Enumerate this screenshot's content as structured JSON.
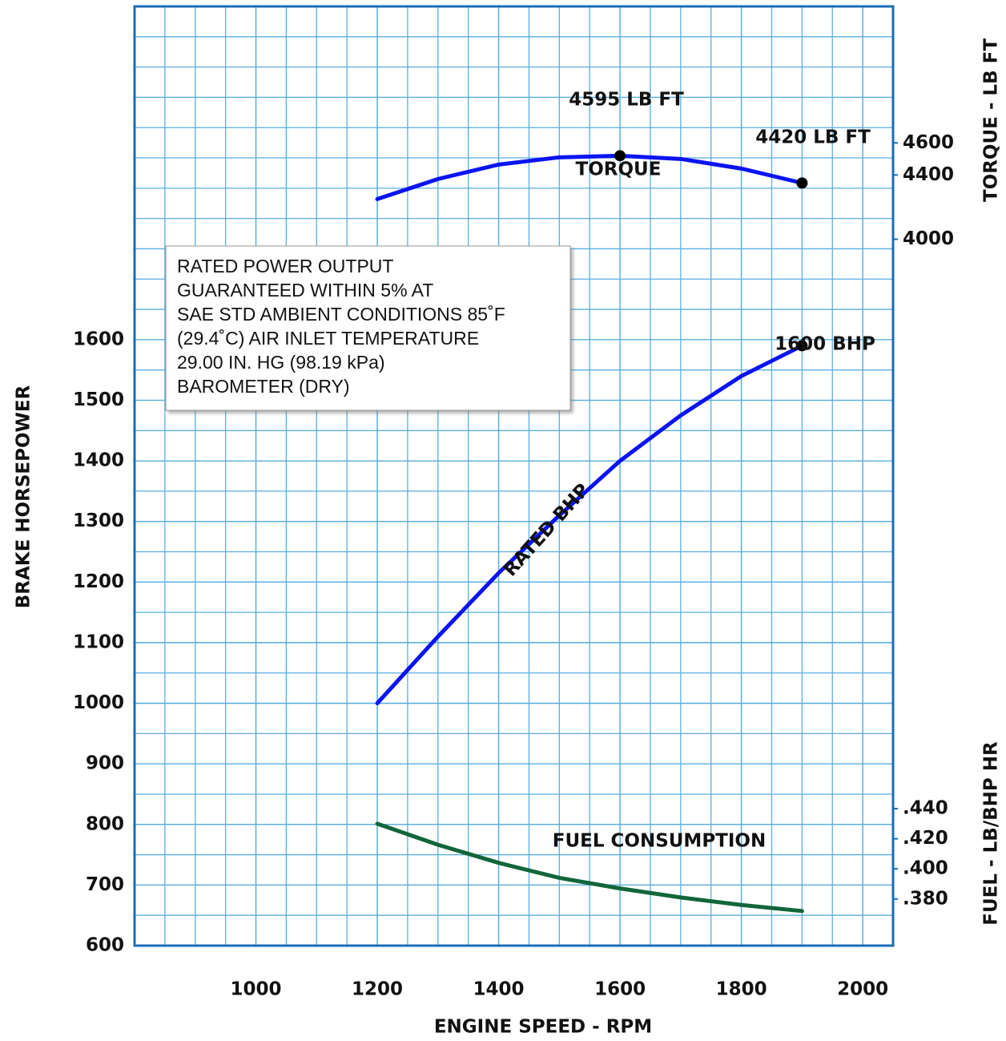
{
  "chart_data": {
    "type": "line",
    "x_label": "ENGINE SPEED - RPM",
    "y_label": "BRAKE HORSEPOWER",
    "y2_label": "TORQUE - LB FT",
    "y3_label": "FUEL - LB/BHP HR",
    "x": [
      1200,
      1300,
      1400,
      1500,
      1600,
      1700,
      1800,
      1900
    ],
    "xlim": [
      800,
      2050
    ],
    "xticks": [
      1000,
      1200,
      1400,
      1600,
      1800,
      2000
    ],
    "ylim": [
      600,
      2150
    ],
    "yticks": [
      600,
      700,
      800,
      900,
      1000,
      1100,
      1200,
      1300,
      1400,
      1500,
      1600
    ],
    "y2lim": [
      -400,
      5450
    ],
    "y2ticks": [
      4000,
      4400,
      4600
    ],
    "y3lim": [
      0.349,
      0.973
    ],
    "y3ticks": [
      {
        "value": 0.38,
        "label": ".380"
      },
      {
        "value": 0.4,
        "label": ".400"
      },
      {
        "value": 0.42,
        "label": ".420"
      },
      {
        "value": 0.44,
        "label": ".440"
      }
    ],
    "grid": true,
    "series": [
      {
        "name": "TORQUE",
        "color": "#0a14f0",
        "axis": "y2",
        "values": [
          4250,
          4375,
          4465,
          4510,
          4520,
          4500,
          4440,
          4350
        ]
      },
      {
        "name": "RATED BHP",
        "color": "#0a14f0",
        "axis": "y",
        "values": [
          1000,
          1110,
          1215,
          1310,
          1400,
          1475,
          1540,
          1590
        ]
      },
      {
        "name": "FUEL CONSUMPTION",
        "color": "#12663a",
        "axis": "y3",
        "values": [
          0.43,
          0.416,
          0.404,
          0.394,
          0.387,
          0.381,
          0.376,
          0.372
        ]
      }
    ],
    "annotations": [
      "4595 LB FT",
      "4420 LB FT",
      "1600 BHP"
    ],
    "note": [
      "RATED POWER OUTPUT",
      "GUARANTEED WITHIN 5% AT",
      "SAE STD AMBIENT CONDITIONS 85˚F",
      "(29.4˚C) AIR INLET TEMPERATURE",
      "29.00 IN. HG (98.19 kPa)",
      "BAROMETER (DRY)"
    ]
  }
}
